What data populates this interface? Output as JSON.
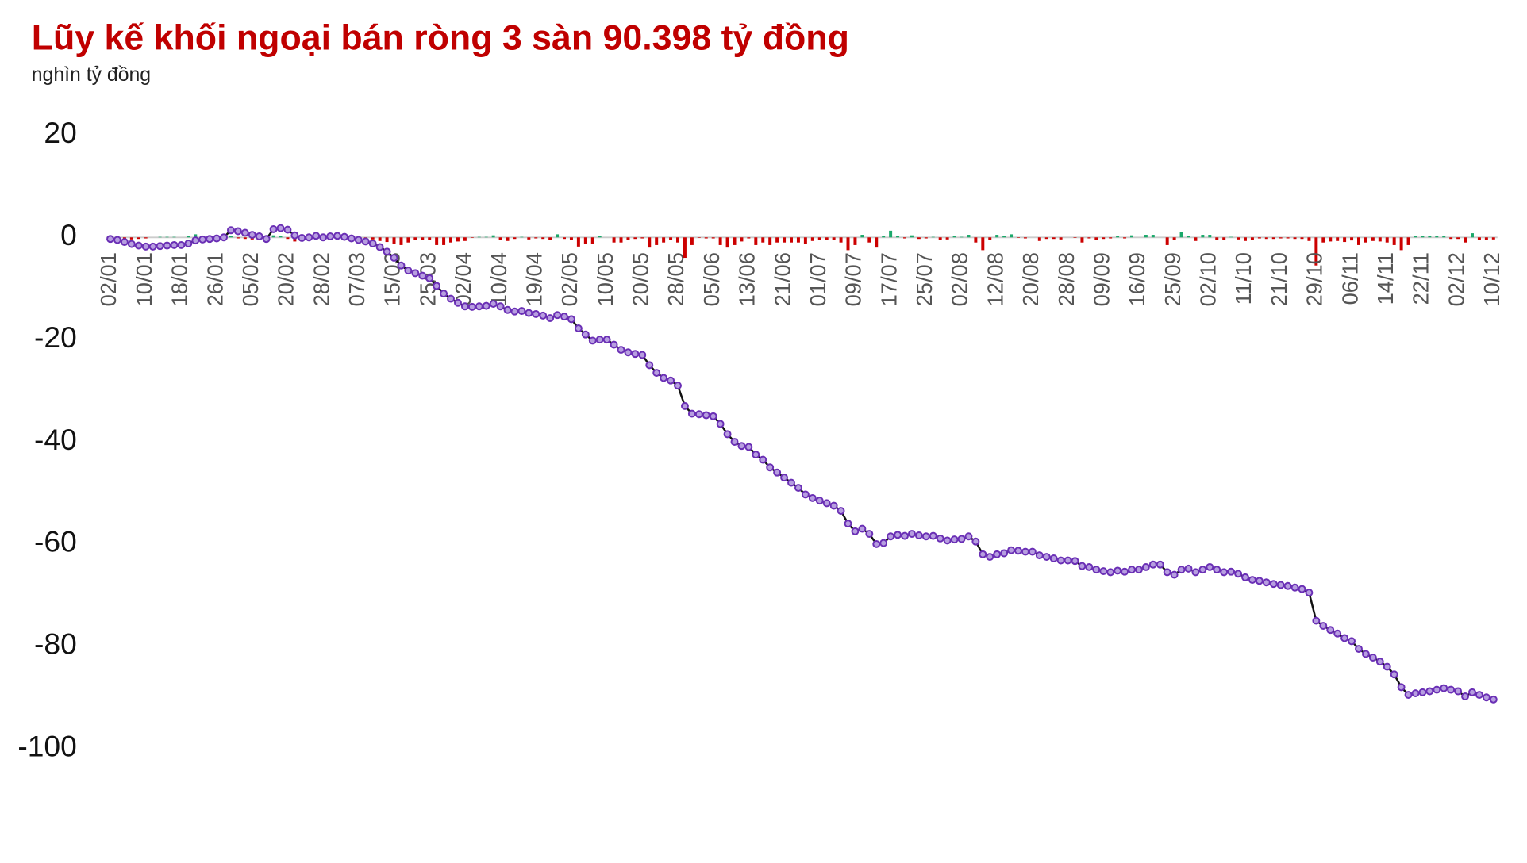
{
  "chart_data": {
    "type": "line",
    "title": "Lũy kế khối ngoại bán ròng 3 sàn 90.398 tỷ đồng",
    "subtitle": "nghìn tỷ đồng",
    "categories": [
      "02/01",
      null,
      null,
      null,
      null,
      "10/01",
      null,
      null,
      null,
      null,
      "18/01",
      null,
      null,
      null,
      null,
      "26/01",
      null,
      null,
      null,
      null,
      "05/02",
      null,
      null,
      null,
      null,
      "20/02",
      null,
      null,
      null,
      null,
      "28/02",
      null,
      null,
      null,
      null,
      "07/03",
      null,
      null,
      null,
      null,
      "15/03",
      null,
      null,
      null,
      null,
      "25/03",
      null,
      null,
      null,
      null,
      "02/04",
      null,
      null,
      null,
      null,
      "10/04",
      null,
      null,
      null,
      null,
      "19/04",
      null,
      null,
      null,
      null,
      "02/05",
      null,
      null,
      null,
      null,
      "10/05",
      null,
      null,
      null,
      null,
      "20/05",
      null,
      null,
      null,
      null,
      "28/05",
      null,
      null,
      null,
      null,
      "05/06",
      null,
      null,
      null,
      null,
      "13/06",
      null,
      null,
      null,
      null,
      "21/06",
      null,
      null,
      null,
      null,
      "01/07",
      null,
      null,
      null,
      null,
      "09/07",
      null,
      null,
      null,
      null,
      "17/07",
      null,
      null,
      null,
      null,
      "25/07",
      null,
      null,
      null,
      null,
      "02/08",
      null,
      null,
      null,
      null,
      "12/08",
      null,
      null,
      null,
      null,
      "20/08",
      null,
      null,
      null,
      null,
      "28/08",
      null,
      null,
      null,
      null,
      "09/09",
      null,
      null,
      null,
      null,
      "16/09",
      null,
      null,
      null,
      null,
      "25/09",
      null,
      null,
      null,
      null,
      "02/10",
      null,
      null,
      null,
      null,
      "11/10",
      null,
      null,
      null,
      null,
      "21/10",
      null,
      null,
      null,
      null,
      "29/10",
      null,
      null,
      null,
      null,
      "06/11",
      null,
      null,
      null,
      null,
      "14/11",
      null,
      null,
      null,
      null,
      "22/11",
      null,
      null,
      null,
      null,
      "02/12",
      null,
      null,
      null,
      null,
      "10/12"
    ],
    "line": {
      "color": "#111111",
      "marker_fill": "#b79ee0",
      "marker_stroke": "#6a2fb5",
      "values": [
        -0.3,
        -0.5,
        -0.9,
        -1.3,
        -1.6,
        -1.8,
        -1.8,
        -1.7,
        -1.6,
        -1.5,
        -1.5,
        -1.2,
        -0.6,
        -0.4,
        -0.3,
        -0.2,
        0.0,
        1.4,
        1.2,
        0.9,
        0.5,
        0.2,
        -0.3,
        1.6,
        1.8,
        1.5,
        0.4,
        -0.1,
        0.0,
        0.3,
        0.0,
        0.2,
        0.3,
        0.1,
        -0.2,
        -0.5,
        -0.8,
        -1.2,
        -1.9,
        -2.8,
        -4.0,
        -5.5,
        -6.5,
        -7.0,
        -7.5,
        -8.0,
        -9.5,
        -11.0,
        -12.0,
        -12.8,
        -13.5,
        -13.6,
        -13.5,
        -13.4,
        -13.0,
        -13.5,
        -14.2,
        -14.5,
        -14.4,
        -14.8,
        -15.0,
        -15.3,
        -15.8,
        -15.2,
        -15.5,
        -16.0,
        -17.8,
        -19.0,
        -20.2,
        -20.0,
        -20.0,
        -21.0,
        -22.0,
        -22.5,
        -22.8,
        -23.0,
        -25.0,
        -26.5,
        -27.5,
        -28.0,
        -29.0,
        -33.0,
        -34.5,
        -34.6,
        -34.8,
        -35.0,
        -36.5,
        -38.5,
        -40.0,
        -40.8,
        -41.0,
        -42.5,
        -43.5,
        -45.0,
        -46.0,
        -47.0,
        -48.0,
        -49.0,
        -50.3,
        -51.0,
        -51.5,
        -52.0,
        -52.5,
        -53.5,
        -56.0,
        -57.5,
        -57.0,
        -58.0,
        -60.0,
        -59.8,
        -58.5,
        -58.2,
        -58.4,
        -58.0,
        -58.3,
        -58.5,
        -58.4,
        -58.9,
        -59.3,
        -59.1,
        -59.0,
        -58.5,
        -59.5,
        -62.0,
        -62.5,
        -62.0,
        -61.8,
        -61.2,
        -61.3,
        -61.5,
        -61.5,
        -62.2,
        -62.5,
        -62.8,
        -63.2,
        -63.2,
        -63.3,
        -64.3,
        -64.5,
        -65.0,
        -65.3,
        -65.5,
        -65.2,
        -65.4,
        -65.0,
        -65.0,
        -64.5,
        -64.0,
        -64.0,
        -65.5,
        -66.0,
        -65.0,
        -64.8,
        -65.5,
        -65.0,
        -64.5,
        -65.0,
        -65.5,
        -65.4,
        -65.8,
        -66.5,
        -67.0,
        -67.2,
        -67.5,
        -67.8,
        -68.0,
        -68.2,
        -68.5,
        -68.8,
        -69.5,
        -75.0,
        -76.0,
        -76.8,
        -77.5,
        -78.4,
        -79.0,
        -80.5,
        -81.5,
        -82.2,
        -83.0,
        -84.0,
        -85.5,
        -88.0,
        -89.5,
        -89.2,
        -89.0,
        -88.8,
        -88.5,
        -88.2,
        -88.5,
        -88.8,
        -89.8,
        -89.0,
        -89.5,
        -90.0,
        -90.4
      ]
    },
    "bars": {
      "positive_color": "#1aa86a",
      "negative_color": "#cc0000",
      "values": [
        -0.2,
        -0.2,
        -0.4,
        -0.4,
        -0.3,
        -0.2,
        0,
        0.1,
        0.1,
        0.1,
        0,
        0.3,
        0.6,
        0.2,
        0.1,
        0.1,
        0.2,
        0.3,
        -0.2,
        -0.3,
        -0.4,
        -0.3,
        -0.5,
        0.4,
        0.2,
        -0.3,
        -0.8,
        -0.5,
        0.1,
        0.3,
        -0.3,
        0.2,
        0.1,
        -0.2,
        -0.3,
        -0.3,
        -0.3,
        -0.4,
        -0.7,
        -0.9,
        -1.2,
        -1.5,
        -1.0,
        -0.5,
        -0.5,
        -0.5,
        -1.5,
        -1.5,
        -1.0,
        -0.8,
        -0.7,
        -0.1,
        0.1,
        0.1,
        0.4,
        -0.5,
        -0.7,
        -0.3,
        0.1,
        -0.4,
        -0.2,
        -0.3,
        -0.5,
        0.6,
        -0.3,
        -0.5,
        -1.8,
        -1.2,
        -1.2,
        0.2,
        0,
        -1.0,
        -1.0,
        -0.5,
        -0.3,
        -0.2,
        -2.0,
        -1.5,
        -1.0,
        -0.5,
        -1.0,
        -4.0,
        -1.5,
        -0.1,
        -0.2,
        -0.2,
        -1.5,
        -2.0,
        -1.5,
        -0.8,
        -0.2,
        -1.5,
        -1.0,
        -1.5,
        -1.0,
        -1.0,
        -1.0,
        -1.0,
        -1.3,
        -0.7,
        -0.5,
        -0.5,
        -0.5,
        -1.0,
        -2.5,
        -1.5,
        0.5,
        -1.0,
        -2.0,
        0.2,
        1.3,
        0.3,
        -0.2,
        0.4,
        -0.3,
        -0.2,
        0.1,
        -0.5,
        -0.4,
        0.2,
        0.1,
        0.5,
        -1.0,
        -2.5,
        -0.5,
        0.5,
        0.2,
        0.6,
        -0.1,
        -0.2,
        0,
        -0.7,
        -0.3,
        -0.3,
        -0.4,
        0,
        -0.1,
        -1.0,
        -0.2,
        -0.5,
        -0.3,
        -0.2,
        0.3,
        -0.2,
        0.4,
        0,
        0.5,
        0.5,
        0,
        -1.5,
        -0.5,
        1.0,
        0.2,
        -0.7,
        0.5,
        0.5,
        -0.5,
        -0.5,
        0.1,
        -0.4,
        -0.7,
        -0.5,
        -0.2,
        -0.3,
        -0.3,
        -0.2,
        -0.2,
        -0.3,
        -0.3,
        -0.7,
        -5.5,
        -1.0,
        -0.8,
        -0.7,
        -0.9,
        -0.6,
        -1.5,
        -1.0,
        -0.7,
        -0.8,
        -1.0,
        -1.5,
        -2.5,
        -1.5,
        0.3,
        0.2,
        0.2,
        0.3,
        0.3,
        -0.3,
        -0.3,
        -1.0,
        0.8,
        -0.5,
        -0.5,
        -0.4
      ]
    },
    "ylim": [
      -100,
      20
    ],
    "yticks": [
      20,
      0,
      -20,
      -40,
      -60,
      -80,
      -100
    ],
    "zero_line": true
  }
}
